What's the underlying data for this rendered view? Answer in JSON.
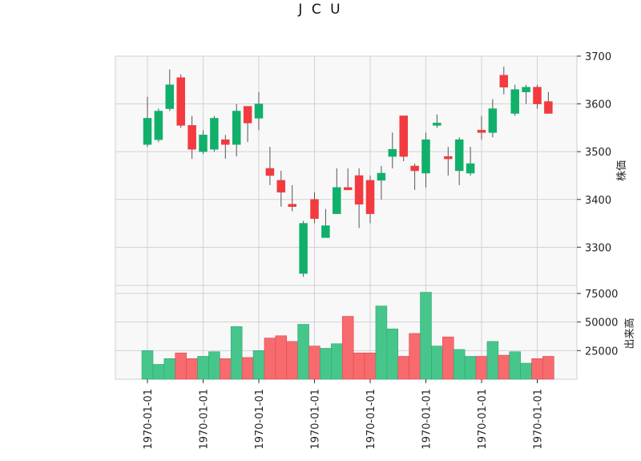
{
  "chart_data": {
    "type": "candlestick",
    "title": "J C U",
    "ylabel_price": "株価",
    "ylabel_volume": "出来高",
    "price_ticks": [
      3300,
      3400,
      3500,
      3600,
      3700
    ],
    "price_ylim": [
      3220,
      3700
    ],
    "volume_ticks": [
      25000,
      50000,
      75000
    ],
    "volume_ylim": [
      0,
      82000
    ],
    "x_tick_labels": [
      "1970-01-01",
      "1970-01-01",
      "1970-01-01",
      "1970-01-01",
      "1970-01-01",
      "1970-01-01",
      "1970-01-01",
      "1970-01-01"
    ],
    "x_tick_positions": [
      0,
      5,
      10,
      15,
      20,
      25,
      30,
      35
    ],
    "colors": {
      "up": "#10b06b",
      "down": "#f23a3f",
      "vol_up": "#47c68b",
      "vol_down": "#f76a6e",
      "panel_bg": "#f8f8f8",
      "grid": "#d2d2d2"
    },
    "candles": [
      {
        "o": 3515,
        "h": 3615,
        "l": 3510,
        "c": 3570,
        "v": 25000
      },
      {
        "o": 3525,
        "h": 3590,
        "l": 3520,
        "c": 3585,
        "v": 13000
      },
      {
        "o": 3590,
        "h": 3672,
        "l": 3585,
        "c": 3640,
        "v": 18000
      },
      {
        "o": 3655,
        "h": 3662,
        "l": 3550,
        "c": 3555,
        "v": 23000
      },
      {
        "o": 3555,
        "h": 3575,
        "l": 3485,
        "c": 3505,
        "v": 18000
      },
      {
        "o": 3500,
        "h": 3545,
        "l": 3495,
        "c": 3535,
        "v": 20000
      },
      {
        "o": 3505,
        "h": 3575,
        "l": 3500,
        "c": 3570,
        "v": 24000
      },
      {
        "o": 3525,
        "h": 3535,
        "l": 3485,
        "c": 3515,
        "v": 18000
      },
      {
        "o": 3515,
        "h": 3600,
        "l": 3490,
        "c": 3585,
        "v": 46000
      },
      {
        "o": 3595,
        "h": 3595,
        "l": 3520,
        "c": 3560,
        "v": 19000
      },
      {
        "o": 3570,
        "h": 3625,
        "l": 3545,
        "c": 3600,
        "v": 25000
      },
      {
        "o": 3465,
        "h": 3510,
        "l": 3430,
        "c": 3450,
        "v": 36000
      },
      {
        "o": 3440,
        "h": 3460,
        "l": 3385,
        "c": 3415,
        "v": 38000
      },
      {
        "o": 3390,
        "h": 3430,
        "l": 3375,
        "c": 3385,
        "v": 33000
      },
      {
        "o": 3245,
        "h": 3355,
        "l": 3238,
        "c": 3350,
        "v": 48000
      },
      {
        "o": 3400,
        "h": 3415,
        "l": 3350,
        "c": 3360,
        "v": 29000
      },
      {
        "o": 3320,
        "h": 3380,
        "l": 3320,
        "c": 3345,
        "v": 27000
      },
      {
        "o": 3370,
        "h": 3465,
        "l": 3370,
        "c": 3425,
        "v": 31000
      },
      {
        "o": 3425,
        "h": 3465,
        "l": 3420,
        "c": 3420,
        "v": 55000
      },
      {
        "o": 3450,
        "h": 3465,
        "l": 3340,
        "c": 3390,
        "v": 23000
      },
      {
        "o": 3440,
        "h": 3450,
        "l": 3350,
        "c": 3370,
        "v": 23000
      },
      {
        "o": 3440,
        "h": 3470,
        "l": 3400,
        "c": 3455,
        "v": 64000
      },
      {
        "o": 3490,
        "h": 3540,
        "l": 3465,
        "c": 3505,
        "v": 44000
      },
      {
        "o": 3575,
        "h": 3575,
        "l": 3480,
        "c": 3490,
        "v": 20000
      },
      {
        "o": 3470,
        "h": 3475,
        "l": 3420,
        "c": 3460,
        "v": 40000
      },
      {
        "o": 3455,
        "h": 3540,
        "l": 3425,
        "c": 3525,
        "v": 76000
      },
      {
        "o": 3555,
        "h": 3578,
        "l": 3550,
        "c": 3560,
        "v": 29000
      },
      {
        "o": 3490,
        "h": 3510,
        "l": 3450,
        "c": 3485,
        "v": 37000
      },
      {
        "o": 3460,
        "h": 3530,
        "l": 3430,
        "c": 3525,
        "v": 26000
      },
      {
        "o": 3455,
        "h": 3510,
        "l": 3450,
        "c": 3475,
        "v": 20000
      },
      {
        "o": 3545,
        "h": 3575,
        "l": 3525,
        "c": 3540,
        "v": 20000
      },
      {
        "o": 3540,
        "h": 3610,
        "l": 3530,
        "c": 3590,
        "v": 33000
      },
      {
        "o": 3660,
        "h": 3678,
        "l": 3620,
        "c": 3635,
        "v": 21000
      },
      {
        "o": 3580,
        "h": 3640,
        "l": 3575,
        "c": 3630,
        "v": 24000
      },
      {
        "o": 3625,
        "h": 3640,
        "l": 3600,
        "c": 3635,
        "v": 14000
      },
      {
        "o": 3635,
        "h": 3640,
        "l": 3590,
        "c": 3600,
        "v": 18000
      },
      {
        "o": 3605,
        "h": 3625,
        "l": 3580,
        "c": 3580,
        "v": 20000
      }
    ]
  }
}
